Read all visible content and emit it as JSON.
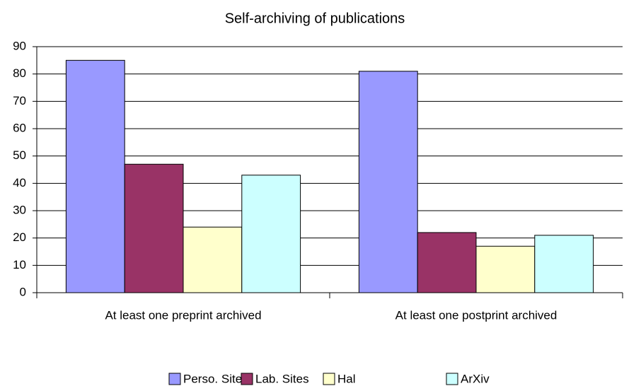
{
  "chart_data": {
    "type": "bar",
    "title": "Self-archiving of publications",
    "categories": [
      "At least one preprint archived",
      "At least one postprint archived"
    ],
    "series": [
      {
        "name": "Perso. Sites",
        "color": "#9999ff",
        "values": [
          85,
          81
        ]
      },
      {
        "name": "Lab. Sites",
        "color": "#993366",
        "values": [
          47,
          22
        ]
      },
      {
        "name": "Hal",
        "color": "#ffffcc",
        "values": [
          24,
          17
        ]
      },
      {
        "name": "ArXiv",
        "color": "#ccffff",
        "values": [
          43,
          21
        ]
      }
    ],
    "ylim": [
      0,
      90
    ],
    "yticks": [
      0,
      10,
      20,
      30,
      40,
      50,
      60,
      70,
      80,
      90
    ],
    "grid": true,
    "legend": "bottom"
  }
}
